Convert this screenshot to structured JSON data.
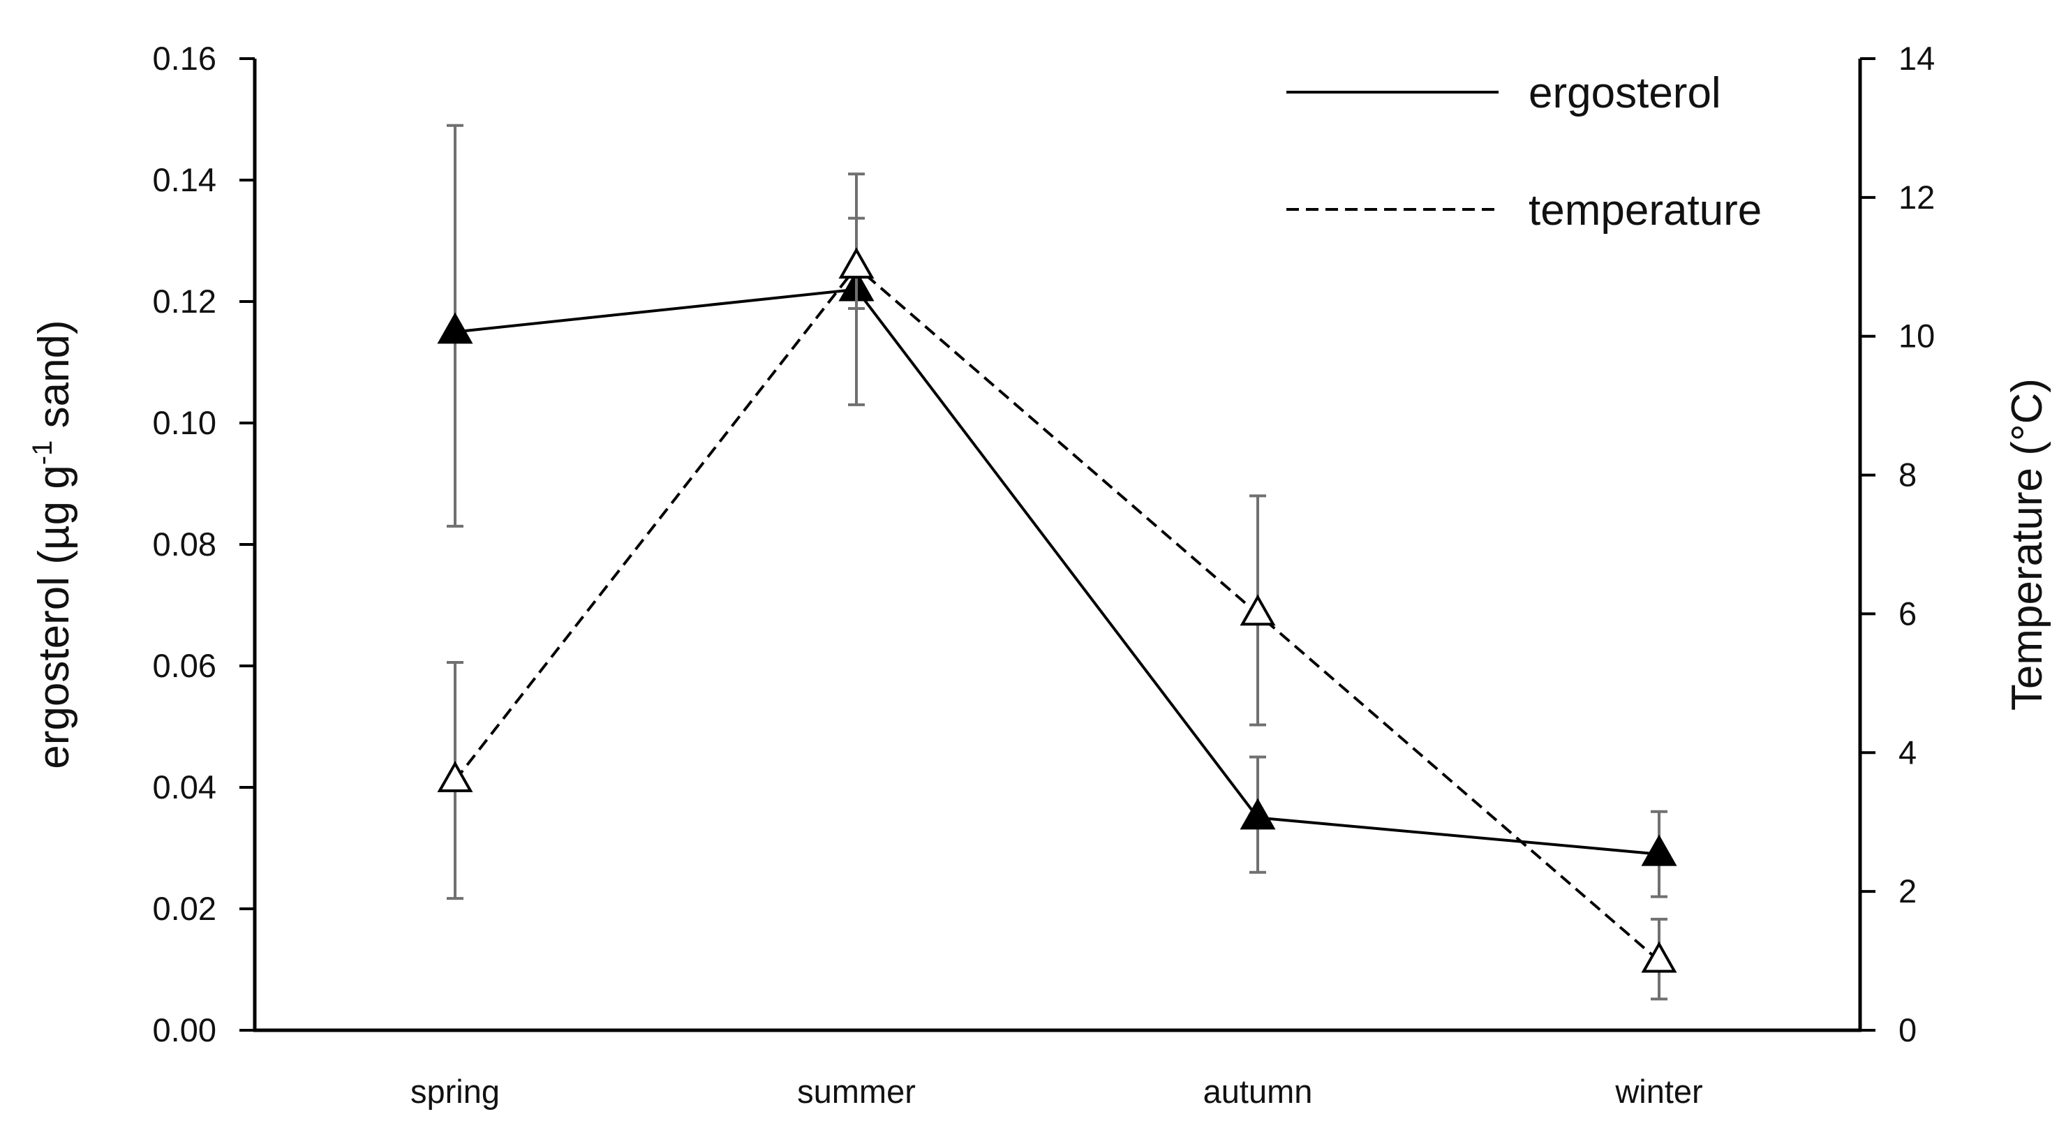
{
  "chart_data": {
    "type": "line",
    "categories": [
      "spring",
      "summer",
      "autumn",
      "winter"
    ],
    "y_left": {
      "label_main": "ergosterol (µg g",
      "label_sup": "-1",
      "label_tail": " sand)",
      "range": [
        0,
        0.16
      ],
      "ticks": [
        "0.00",
        "0.02",
        "0.04",
        "0.06",
        "0.08",
        "0.10",
        "0.12",
        "0.14",
        "0.16"
      ]
    },
    "y_right": {
      "label": "Temperature (°C)",
      "range": [
        0,
        14
      ],
      "ticks": [
        "0",
        "2",
        "4",
        "6",
        "8",
        "10",
        "12",
        "14"
      ]
    },
    "series": [
      {
        "name": "ergosterol",
        "axis": "left",
        "values": [
          0.115,
          0.122,
          0.035,
          0.029
        ],
        "err_low": [
          0.083,
          0.103,
          0.026,
          0.022
        ],
        "err_high": [
          0.149,
          0.141,
          0.045,
          0.036
        ],
        "marker": "filled-triangle",
        "line": "solid"
      },
      {
        "name": "temperature",
        "axis": "right",
        "values": [
          3.6,
          11.0,
          6.0,
          1.0
        ],
        "err_low": [
          1.9,
          10.4,
          4.4,
          0.45
        ],
        "err_high": [
          5.3,
          11.7,
          7.7,
          1.6
        ],
        "marker": "open-triangle",
        "line": "dashed"
      }
    ],
    "legend": [
      {
        "label": "ergosterol",
        "line": "solid"
      },
      {
        "label": "temperature",
        "line": "dashed"
      }
    ],
    "legend_position": "top-right",
    "grid": false,
    "colors": {
      "line": "#000000",
      "errorbar": "#707070"
    }
  }
}
